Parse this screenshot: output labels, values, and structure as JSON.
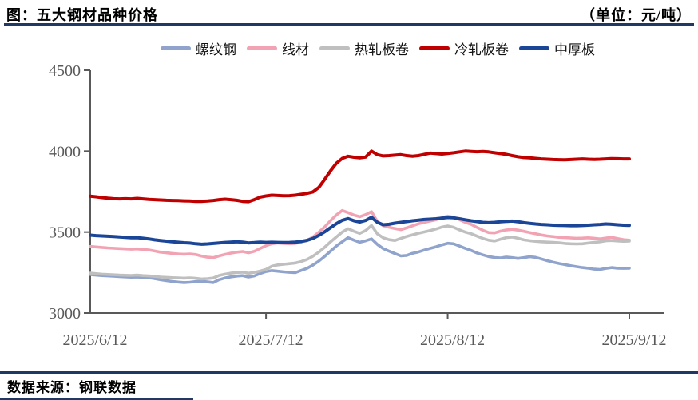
{
  "header": {
    "title": "图：五大钢材品种价格",
    "unit_label": "（单位：元/吨）"
  },
  "footer": {
    "source": "数据来源：钢联数据"
  },
  "colors": {
    "rule": "#1F3864",
    "axis": "#595959",
    "tick_text": "#595959"
  },
  "chart_data": {
    "type": "line",
    "title": "五大钢材品种价格",
    "unit": "元/吨",
    "grid": false,
    "legend_position": "top",
    "ylim": [
      3000,
      4500
    ],
    "y_ticks": [
      3000,
      3500,
      4000,
      4500
    ],
    "x_tick_labels": [
      "2025/6/12",
      "2025/7/12",
      "2025/8/12",
      "2025/9/12"
    ],
    "x_tick_days": [
      0,
      30,
      61,
      92
    ],
    "x_total_days": 92,
    "series": [
      {
        "name": "螺纹钢",
        "key": "rebar",
        "color": "#8FA3CC",
        "width": 3.6,
        "values": [
          3237,
          3234,
          3231,
          3229,
          3227,
          3225,
          3223,
          3221,
          3222,
          3220,
          3218,
          3212,
          3206,
          3200,
          3195,
          3191,
          3188,
          3190,
          3194,
          3196,
          3192,
          3188,
          3206,
          3216,
          3223,
          3228,
          3231,
          3222,
          3229,
          3244,
          3256,
          3262,
          3258,
          3254,
          3251,
          3249,
          3263,
          3276,
          3296,
          3320,
          3350,
          3382,
          3414,
          3440,
          3466,
          3450,
          3437,
          3446,
          3458,
          3424,
          3398,
          3382,
          3367,
          3353,
          3356,
          3369,
          3377,
          3389,
          3399,
          3409,
          3421,
          3431,
          3428,
          3414,
          3399,
          3387,
          3371,
          3359,
          3349,
          3343,
          3340,
          3346,
          3342,
          3337,
          3342,
          3348,
          3344,
          3334,
          3323,
          3314,
          3306,
          3299,
          3292,
          3286,
          3281,
          3277,
          3271,
          3269,
          3276,
          3281,
          3277,
          3276,
          3277
        ]
      },
      {
        "name": "线材",
        "key": "wire-rod",
        "color": "#F2A3B3",
        "width": 3.6,
        "values": [
          3411,
          3408,
          3405,
          3402,
          3400,
          3398,
          3396,
          3394,
          3396,
          3393,
          3390,
          3383,
          3376,
          3372,
          3368,
          3365,
          3363,
          3365,
          3361,
          3352,
          3345,
          3342,
          3353,
          3362,
          3370,
          3376,
          3380,
          3372,
          3381,
          3399,
          3416,
          3428,
          3432,
          3430,
          3428,
          3430,
          3438,
          3449,
          3469,
          3499,
          3532,
          3570,
          3606,
          3633,
          3620,
          3605,
          3595,
          3608,
          3626,
          3565,
          3540,
          3530,
          3522,
          3515,
          3526,
          3539,
          3551,
          3560,
          3568,
          3576,
          3589,
          3599,
          3592,
          3577,
          3560,
          3548,
          3529,
          3511,
          3497,
          3495,
          3506,
          3513,
          3517,
          3512,
          3505,
          3497,
          3490,
          3482,
          3476,
          3472,
          3468,
          3466,
          3464,
          3462,
          3463,
          3465,
          3462,
          3458,
          3463,
          3468,
          3460,
          3453,
          3450
        ]
      },
      {
        "name": "热轧板卷",
        "key": "hot-rolled-coil",
        "color": "#BFBFBF",
        "width": 3.6,
        "values": [
          3246,
          3243,
          3240,
          3238,
          3236,
          3234,
          3233,
          3232,
          3234,
          3231,
          3229,
          3226,
          3222,
          3220,
          3218,
          3217,
          3215,
          3217,
          3214,
          3210,
          3212,
          3216,
          3232,
          3240,
          3246,
          3250,
          3252,
          3245,
          3251,
          3259,
          3269,
          3289,
          3297,
          3301,
          3305,
          3309,
          3318,
          3331,
          3351,
          3376,
          3406,
          3439,
          3470,
          3500,
          3521,
          3505,
          3492,
          3509,
          3541,
          3489,
          3465,
          3453,
          3448,
          3461,
          3473,
          3483,
          3493,
          3501,
          3509,
          3519,
          3531,
          3538,
          3530,
          3514,
          3500,
          3490,
          3475,
          3461,
          3450,
          3445,
          3456,
          3466,
          3469,
          3462,
          3452,
          3447,
          3443,
          3440,
          3438,
          3436,
          3434,
          3430,
          3428,
          3427,
          3428,
          3432,
          3436,
          3440,
          3446,
          3448,
          3445,
          3443,
          3444
        ]
      },
      {
        "name": "冷轧板卷",
        "key": "cold-rolled-coil",
        "color": "#C00000",
        "width": 4,
        "values": [
          3722,
          3718,
          3713,
          3709,
          3706,
          3705,
          3706,
          3705,
          3708,
          3705,
          3702,
          3700,
          3698,
          3696,
          3695,
          3694,
          3693,
          3692,
          3690,
          3690,
          3692,
          3695,
          3700,
          3703,
          3700,
          3696,
          3690,
          3688,
          3700,
          3716,
          3723,
          3728,
          3726,
          3724,
          3725,
          3728,
          3733,
          3739,
          3748,
          3775,
          3825,
          3878,
          3925,
          3955,
          3968,
          3962,
          3958,
          3963,
          4000,
          3978,
          3970,
          3972,
          3975,
          3978,
          3972,
          3968,
          3972,
          3980,
          3988,
          3985,
          3982,
          3986,
          3990,
          3995,
          4000,
          3998,
          3996,
          3998,
          3995,
          3990,
          3985,
          3980,
          3972,
          3965,
          3960,
          3958,
          3955,
          3952,
          3950,
          3948,
          3947,
          3946,
          3948,
          3950,
          3952,
          3950,
          3949,
          3950,
          3952,
          3954,
          3953,
          3952,
          3952
        ]
      },
      {
        "name": "中厚板",
        "key": "medium-plate",
        "color": "#1B4596",
        "width": 4,
        "values": [
          3481,
          3478,
          3476,
          3474,
          3472,
          3470,
          3468,
          3465,
          3466,
          3462,
          3458,
          3452,
          3448,
          3444,
          3440,
          3437,
          3434,
          3432,
          3428,
          3425,
          3427,
          3430,
          3433,
          3436,
          3438,
          3440,
          3438,
          3433,
          3435,
          3438,
          3436,
          3437,
          3436,
          3435,
          3436,
          3438,
          3442,
          3449,
          3461,
          3479,
          3502,
          3527,
          3552,
          3573,
          3583,
          3570,
          3562,
          3572,
          3591,
          3560,
          3545,
          3548,
          3555,
          3560,
          3565,
          3570,
          3574,
          3578,
          3580,
          3582,
          3586,
          3590,
          3588,
          3582,
          3576,
          3570,
          3565,
          3560,
          3558,
          3560,
          3564,
          3566,
          3568,
          3564,
          3558,
          3554,
          3550,
          3547,
          3545,
          3543,
          3542,
          3541,
          3540,
          3540,
          3541,
          3543,
          3545,
          3547,
          3550,
          3548,
          3545,
          3543,
          3542
        ]
      }
    ]
  }
}
